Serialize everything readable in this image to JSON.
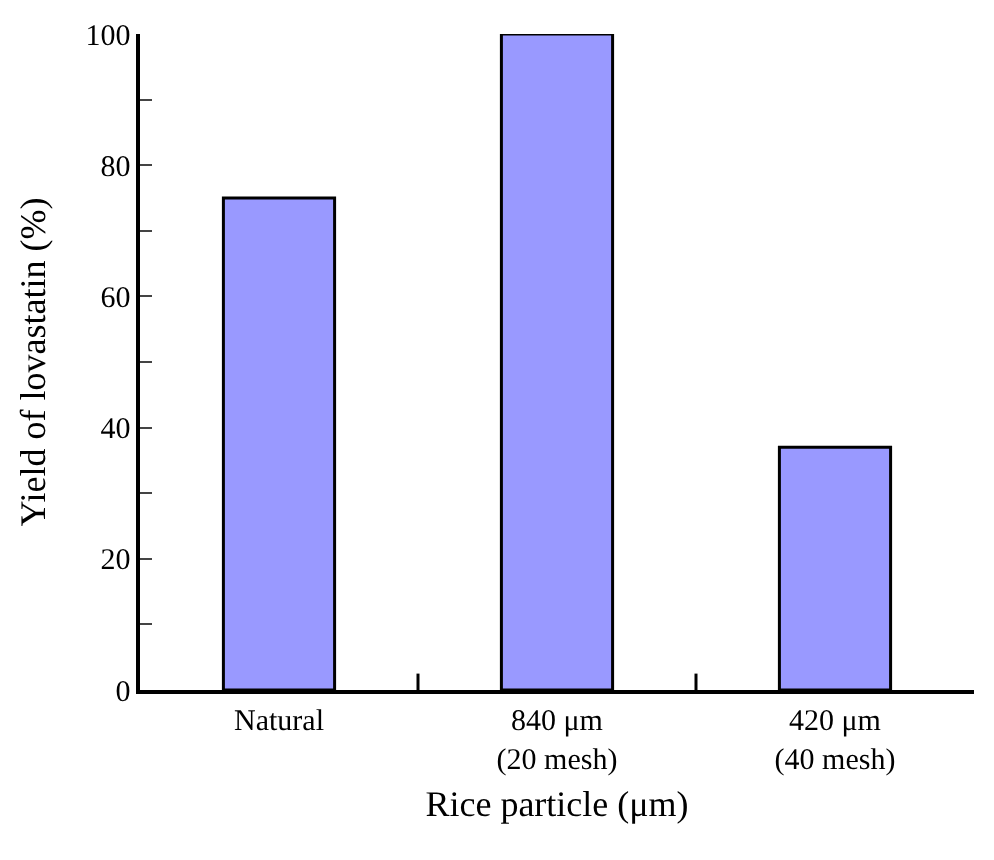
{
  "chart_data": {
    "type": "bar",
    "xlabel": "Rice particle (μm)",
    "ylabel": "Yield of lovastatin (%)",
    "categories": [
      "Natural",
      "840 μm\n(20 mesh)",
      "420 μm\n(40 mesh)"
    ],
    "values": [
      75,
      100,
      37
    ],
    "color": "#9999ff",
    "ylim": [
      0,
      100
    ],
    "yticks": [
      0,
      {
        "value": 10,
        "label": null
      },
      20,
      {
        "value": 30,
        "label": null
      },
      40,
      {
        "value": 50,
        "label": null
      },
      60,
      {
        "value": 70,
        "label": null
      },
      80,
      {
        "value": 90,
        "label": null
      },
      100
    ],
    "data_labels": false
  }
}
